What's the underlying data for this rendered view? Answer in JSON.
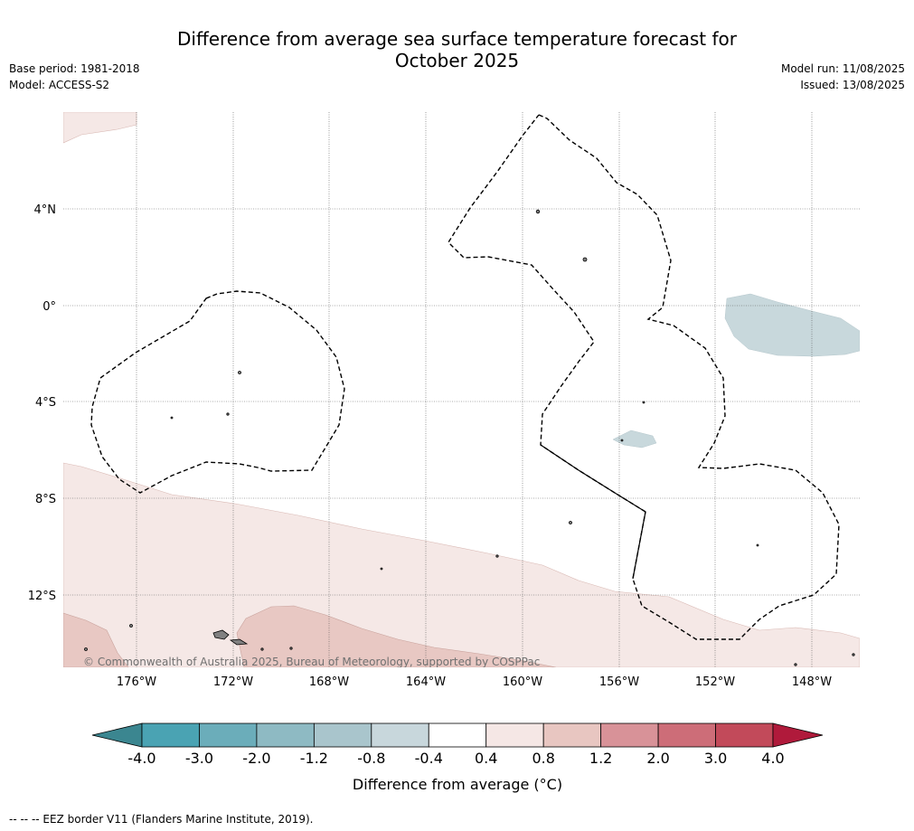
{
  "title_line1": "Difference from average sea surface temperature forecast for",
  "title_line2": "October 2025",
  "base_period": "Base period: 1981-2018",
  "model": "Model: ACCESS-S2",
  "model_run": "Model run: 11/08/2025",
  "issued": "Issued: 13/08/2025",
  "copyright": "© Commonwealth of Australia 2025, Bureau of Meteorology, supported by COSPPac",
  "footnote": "--  --  -- EEZ border V11 (Flanders Marine Institute, 2019).",
  "map": {
    "lon_labels": [
      "176°W",
      "172°W",
      "168°W",
      "164°W",
      "160°W",
      "156°W",
      "152°W",
      "148°W"
    ],
    "lat_labels": [
      "4°N",
      "0°",
      "4°S",
      "8°S",
      "12°S"
    ]
  },
  "colorbar": {
    "label": "Difference from average (°C)",
    "ticks": [
      "-4.0",
      "-3.0",
      "-2.0",
      "-1.2",
      "-0.8",
      "-0.4",
      "0.4",
      "0.8",
      "1.2",
      "2.0",
      "3.0",
      "4.0"
    ],
    "colors": [
      "#3b8690",
      "#4aa3b3",
      "#6badba",
      "#8ebac3",
      "#a9c5cc",
      "#c8d7dc",
      "#ffffff",
      "#f5e7e5",
      "#e8c6c1",
      "#d89298",
      "#cd6d78",
      "#c24a5a",
      "#b01a3b"
    ]
  },
  "colors": {
    "warm_light": "#f5e8e6",
    "warm_mid": "#e8c8c3",
    "cool_light": "#c8d8dc",
    "land": "#808080"
  }
}
